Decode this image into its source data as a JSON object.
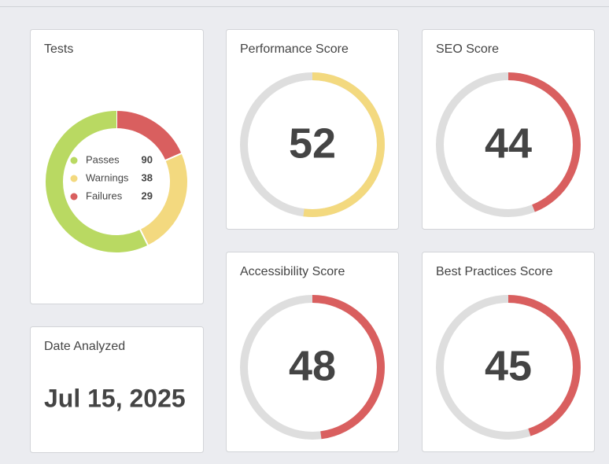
{
  "tests": {
    "title": "Tests",
    "items": [
      {
        "label": "Passes",
        "value": 90,
        "color": "#b9d962"
      },
      {
        "label": "Warnings",
        "value": 38,
        "color": "#f3d97f"
      },
      {
        "label": "Failures",
        "value": 29,
        "color": "#d95f5f"
      }
    ]
  },
  "date": {
    "title": "Date Analyzed",
    "value": "Jul 15, 2025"
  },
  "gauge_range": [
    0,
    100
  ],
  "scores": [
    {
      "title": "Performance Score",
      "value": 52,
      "color": "#f3d97f"
    },
    {
      "title": "SEO Score",
      "value": 44,
      "color": "#d95f5f"
    },
    {
      "title": "Accessibility Score",
      "value": 48,
      "color": "#d95f5f"
    },
    {
      "title": "Best Practices Score",
      "value": 45,
      "color": "#d95f5f"
    }
  ]
}
